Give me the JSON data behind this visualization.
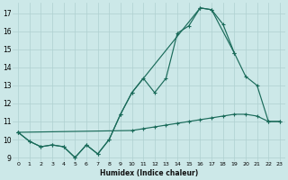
{
  "xlabel": "Humidex (Indice chaleur)",
  "background_color": "#cce8e8",
  "grid_color": "#afd0d0",
  "line_color": "#1a6b5a",
  "xlim": [
    -0.5,
    23.5
  ],
  "ylim": [
    8.8,
    17.6
  ],
  "yticks": [
    9,
    10,
    11,
    12,
    13,
    14,
    15,
    16,
    17
  ],
  "xticks": [
    0,
    1,
    2,
    3,
    4,
    5,
    6,
    7,
    8,
    9,
    10,
    11,
    12,
    13,
    14,
    15,
    16,
    17,
    18,
    19,
    20,
    21,
    22,
    23
  ],
  "s1x": [
    0,
    1,
    2,
    3,
    4,
    5,
    6,
    7,
    8,
    9,
    10,
    11,
    12,
    13,
    14,
    15,
    16,
    17,
    18,
    19
  ],
  "s1y": [
    10.4,
    9.9,
    9.6,
    9.7,
    9.6,
    9.0,
    9.7,
    9.2,
    10.0,
    11.4,
    12.6,
    13.4,
    12.6,
    13.4,
    15.9,
    16.3,
    17.3,
    17.2,
    16.4,
    14.8
  ],
  "s2x": [
    0,
    1,
    2,
    3,
    4,
    5,
    6,
    7,
    8,
    9,
    10,
    16,
    17,
    19,
    20,
    21,
    22,
    23
  ],
  "s2y": [
    10.4,
    9.9,
    9.6,
    9.7,
    9.6,
    9.0,
    9.7,
    9.2,
    10.0,
    11.4,
    12.6,
    17.3,
    17.2,
    14.8,
    13.5,
    13.0,
    11.0,
    11.0
  ],
  "s3x": [
    0,
    10,
    11,
    12,
    13,
    14,
    15,
    16,
    17,
    18,
    19,
    20,
    21,
    22,
    23
  ],
  "s3y": [
    10.4,
    10.5,
    10.6,
    10.7,
    10.8,
    10.9,
    11.0,
    11.1,
    11.2,
    11.3,
    11.4,
    11.4,
    11.3,
    11.0,
    11.0
  ]
}
